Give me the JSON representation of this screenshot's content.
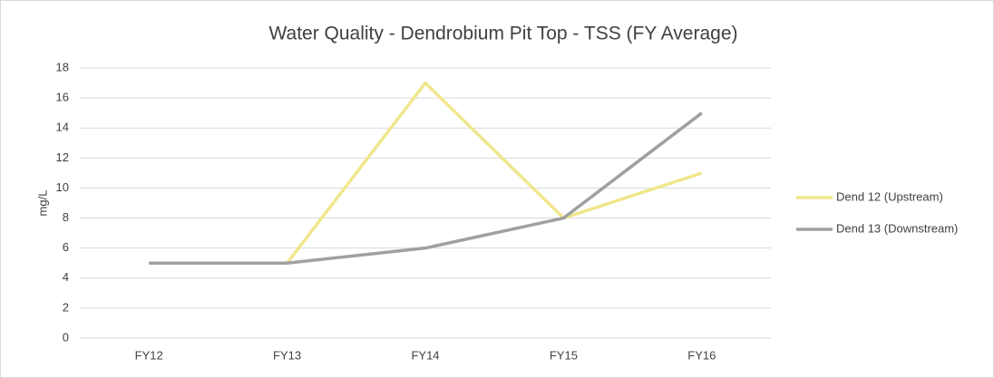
{
  "chart_data": {
    "type": "line",
    "title": "Water Quality - Dendrobium Pit Top - TSS (FY Average)",
    "y_label": "mg/L",
    "categories": [
      "FY12",
      "FY13",
      "FY14",
      "FY15",
      "FY16"
    ],
    "series": [
      {
        "name": "Dend 12 (Upstream)",
        "color": "#f0e68c",
        "values": [
          5,
          5,
          17,
          8,
          11
        ]
      },
      {
        "name": "Dend 13 (Downstream)",
        "color": "#a0a0a0",
        "values": [
          5,
          5,
          6,
          8,
          15
        ]
      }
    ],
    "ylim": [
      0,
      18
    ],
    "yticks": [
      0,
      2,
      4,
      6,
      8,
      10,
      12,
      14,
      16,
      18
    ],
    "grid": true,
    "legend": "right"
  }
}
